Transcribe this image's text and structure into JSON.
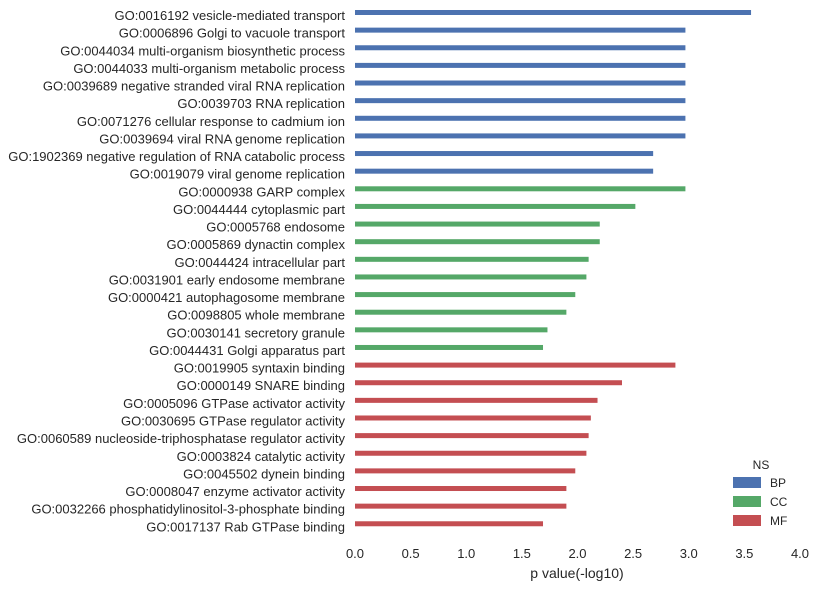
{
  "chart_data": {
    "type": "bar",
    "orientation": "horizontal",
    "xlabel": "p value(-log10)",
    "xlim": [
      0.0,
      4.0
    ],
    "xticks": [
      "0.0",
      "0.5",
      "1.0",
      "1.5",
      "2.0",
      "2.5",
      "3.0",
      "3.5",
      "4.0"
    ],
    "grid": false,
    "legend": {
      "title": "NS",
      "placement": "lower-right",
      "entries": [
        {
          "label": "BP",
          "color": "#4C72B0"
        },
        {
          "label": "CC",
          "color": "#55A868"
        },
        {
          "label": "MF",
          "color": "#C44E52"
        }
      ]
    },
    "bars": [
      {
        "label": "GO:0016192 vesicle-mediated transport",
        "value": 3.56,
        "ns": "BP"
      },
      {
        "label": "GO:0006896 Golgi to vacuole transport",
        "value": 2.97,
        "ns": "BP"
      },
      {
        "label": "GO:0044034 multi-organism biosynthetic process",
        "value": 2.97,
        "ns": "BP"
      },
      {
        "label": "GO:0044033 multi-organism metabolic process",
        "value": 2.97,
        "ns": "BP"
      },
      {
        "label": "GO:0039689 negative stranded viral RNA replication",
        "value": 2.97,
        "ns": "BP"
      },
      {
        "label": "GO:0039703 RNA replication",
        "value": 2.97,
        "ns": "BP"
      },
      {
        "label": "GO:0071276 cellular response to cadmium ion",
        "value": 2.97,
        "ns": "BP"
      },
      {
        "label": "GO:0039694 viral RNA genome replication",
        "value": 2.97,
        "ns": "BP"
      },
      {
        "label": "GO:1902369 negative regulation of RNA catabolic process",
        "value": 2.68,
        "ns": "BP"
      },
      {
        "label": "GO:0019079 viral genome replication",
        "value": 2.68,
        "ns": "BP"
      },
      {
        "label": "GO:0000938 GARP complex",
        "value": 2.97,
        "ns": "CC"
      },
      {
        "label": "GO:0044444 cytoplasmic part",
        "value": 2.52,
        "ns": "CC"
      },
      {
        "label": "GO:0005768 endosome",
        "value": 2.2,
        "ns": "CC"
      },
      {
        "label": "GO:0005869 dynactin complex",
        "value": 2.2,
        "ns": "CC"
      },
      {
        "label": "GO:0044424 intracellular part",
        "value": 2.1,
        "ns": "CC"
      },
      {
        "label": "GO:0031901 early endosome membrane",
        "value": 2.08,
        "ns": "CC"
      },
      {
        "label": "GO:0000421 autophagosome membrane",
        "value": 1.98,
        "ns": "CC"
      },
      {
        "label": "GO:0098805 whole membrane",
        "value": 1.9,
        "ns": "CC"
      },
      {
        "label": "GO:0030141 secretory granule",
        "value": 1.73,
        "ns": "CC"
      },
      {
        "label": "GO:0044431 Golgi apparatus part",
        "value": 1.69,
        "ns": "CC"
      },
      {
        "label": "GO:0019905 syntaxin binding",
        "value": 2.88,
        "ns": "MF"
      },
      {
        "label": "GO:0000149 SNARE binding",
        "value": 2.4,
        "ns": "MF"
      },
      {
        "label": "GO:0005096 GTPase activator activity",
        "value": 2.18,
        "ns": "MF"
      },
      {
        "label": "GO:0030695 GTPase regulator activity",
        "value": 2.12,
        "ns": "MF"
      },
      {
        "label": "GO:0060589 nucleoside-triphosphatase regulator activity",
        "value": 2.1,
        "ns": "MF"
      },
      {
        "label": "GO:0003824 catalytic activity",
        "value": 2.08,
        "ns": "MF"
      },
      {
        "label": "GO:0045502 dynein binding",
        "value": 1.98,
        "ns": "MF"
      },
      {
        "label": "GO:0008047 enzyme activator activity",
        "value": 1.9,
        "ns": "MF"
      },
      {
        "label": "GO:0032266 phosphatidylinositol-3-phosphate binding",
        "value": 1.9,
        "ns": "MF"
      },
      {
        "label": "GO:0017137 Rab GTPase binding",
        "value": 1.69,
        "ns": "MF"
      }
    ]
  }
}
